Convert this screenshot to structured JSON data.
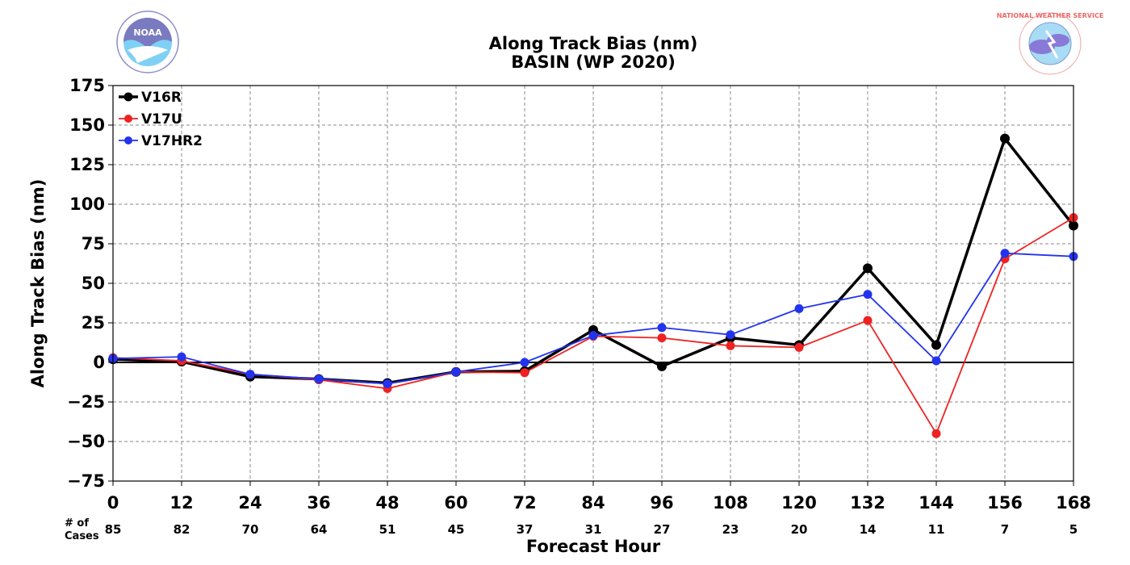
{
  "logos": {
    "left": {
      "icon": "noaa-logo-icon",
      "text": "NOAA"
    },
    "right": {
      "icon": "nws-logo-icon",
      "text": "NATIONAL WEATHER SERVICE"
    }
  },
  "chart_data": {
    "type": "line",
    "title": "Along Track Bias (nm)",
    "subtitle": "BASIN (WP 2020)",
    "xlabel": "Forecast Hour",
    "ylabel": "Along Track Bias (nm)",
    "cases_label": [
      "# of",
      "Cases"
    ],
    "x": [
      0,
      12,
      24,
      36,
      48,
      60,
      72,
      84,
      96,
      108,
      120,
      132,
      144,
      156,
      168
    ],
    "xlim": [
      0,
      168
    ],
    "ylim": [
      -75,
      175
    ],
    "yticks": [
      -75,
      -50,
      -25,
      0,
      25,
      50,
      75,
      100,
      125,
      150,
      175
    ],
    "ytick_labels": [
      "−75",
      "−50",
      "−25",
      "0",
      "25",
      "50",
      "75",
      "100",
      "125",
      "150",
      "175"
    ],
    "cases": [
      85,
      82,
      70,
      64,
      51,
      45,
      37,
      31,
      27,
      23,
      20,
      14,
      11,
      7,
      5
    ],
    "grid": true,
    "legend_position": "top-left",
    "series": [
      {
        "name": "V16R",
        "color": "#000000",
        "line_width": 3.5,
        "values": [
          2,
          0.5,
          -9,
          -10.5,
          -13,
          -6,
          -5.5,
          20.5,
          -2.5,
          15.5,
          11,
          59.5,
          11,
          141.5,
          86.5
        ]
      },
      {
        "name": "V17U",
        "color": "#ee2222",
        "line_width": 1.8,
        "values": [
          3,
          1,
          -7.5,
          -11,
          -16.5,
          -6,
          -6.5,
          16.5,
          15.5,
          10.5,
          9.5,
          26.5,
          -45,
          65.5,
          91.5
        ]
      },
      {
        "name": "V17HR2",
        "color": "#2233ee",
        "line_width": 1.8,
        "values": [
          2.5,
          3.5,
          -7.5,
          -10.5,
          -13.5,
          -6,
          0,
          17,
          22,
          17.5,
          34,
          43,
          1,
          69,
          67
        ]
      }
    ]
  }
}
